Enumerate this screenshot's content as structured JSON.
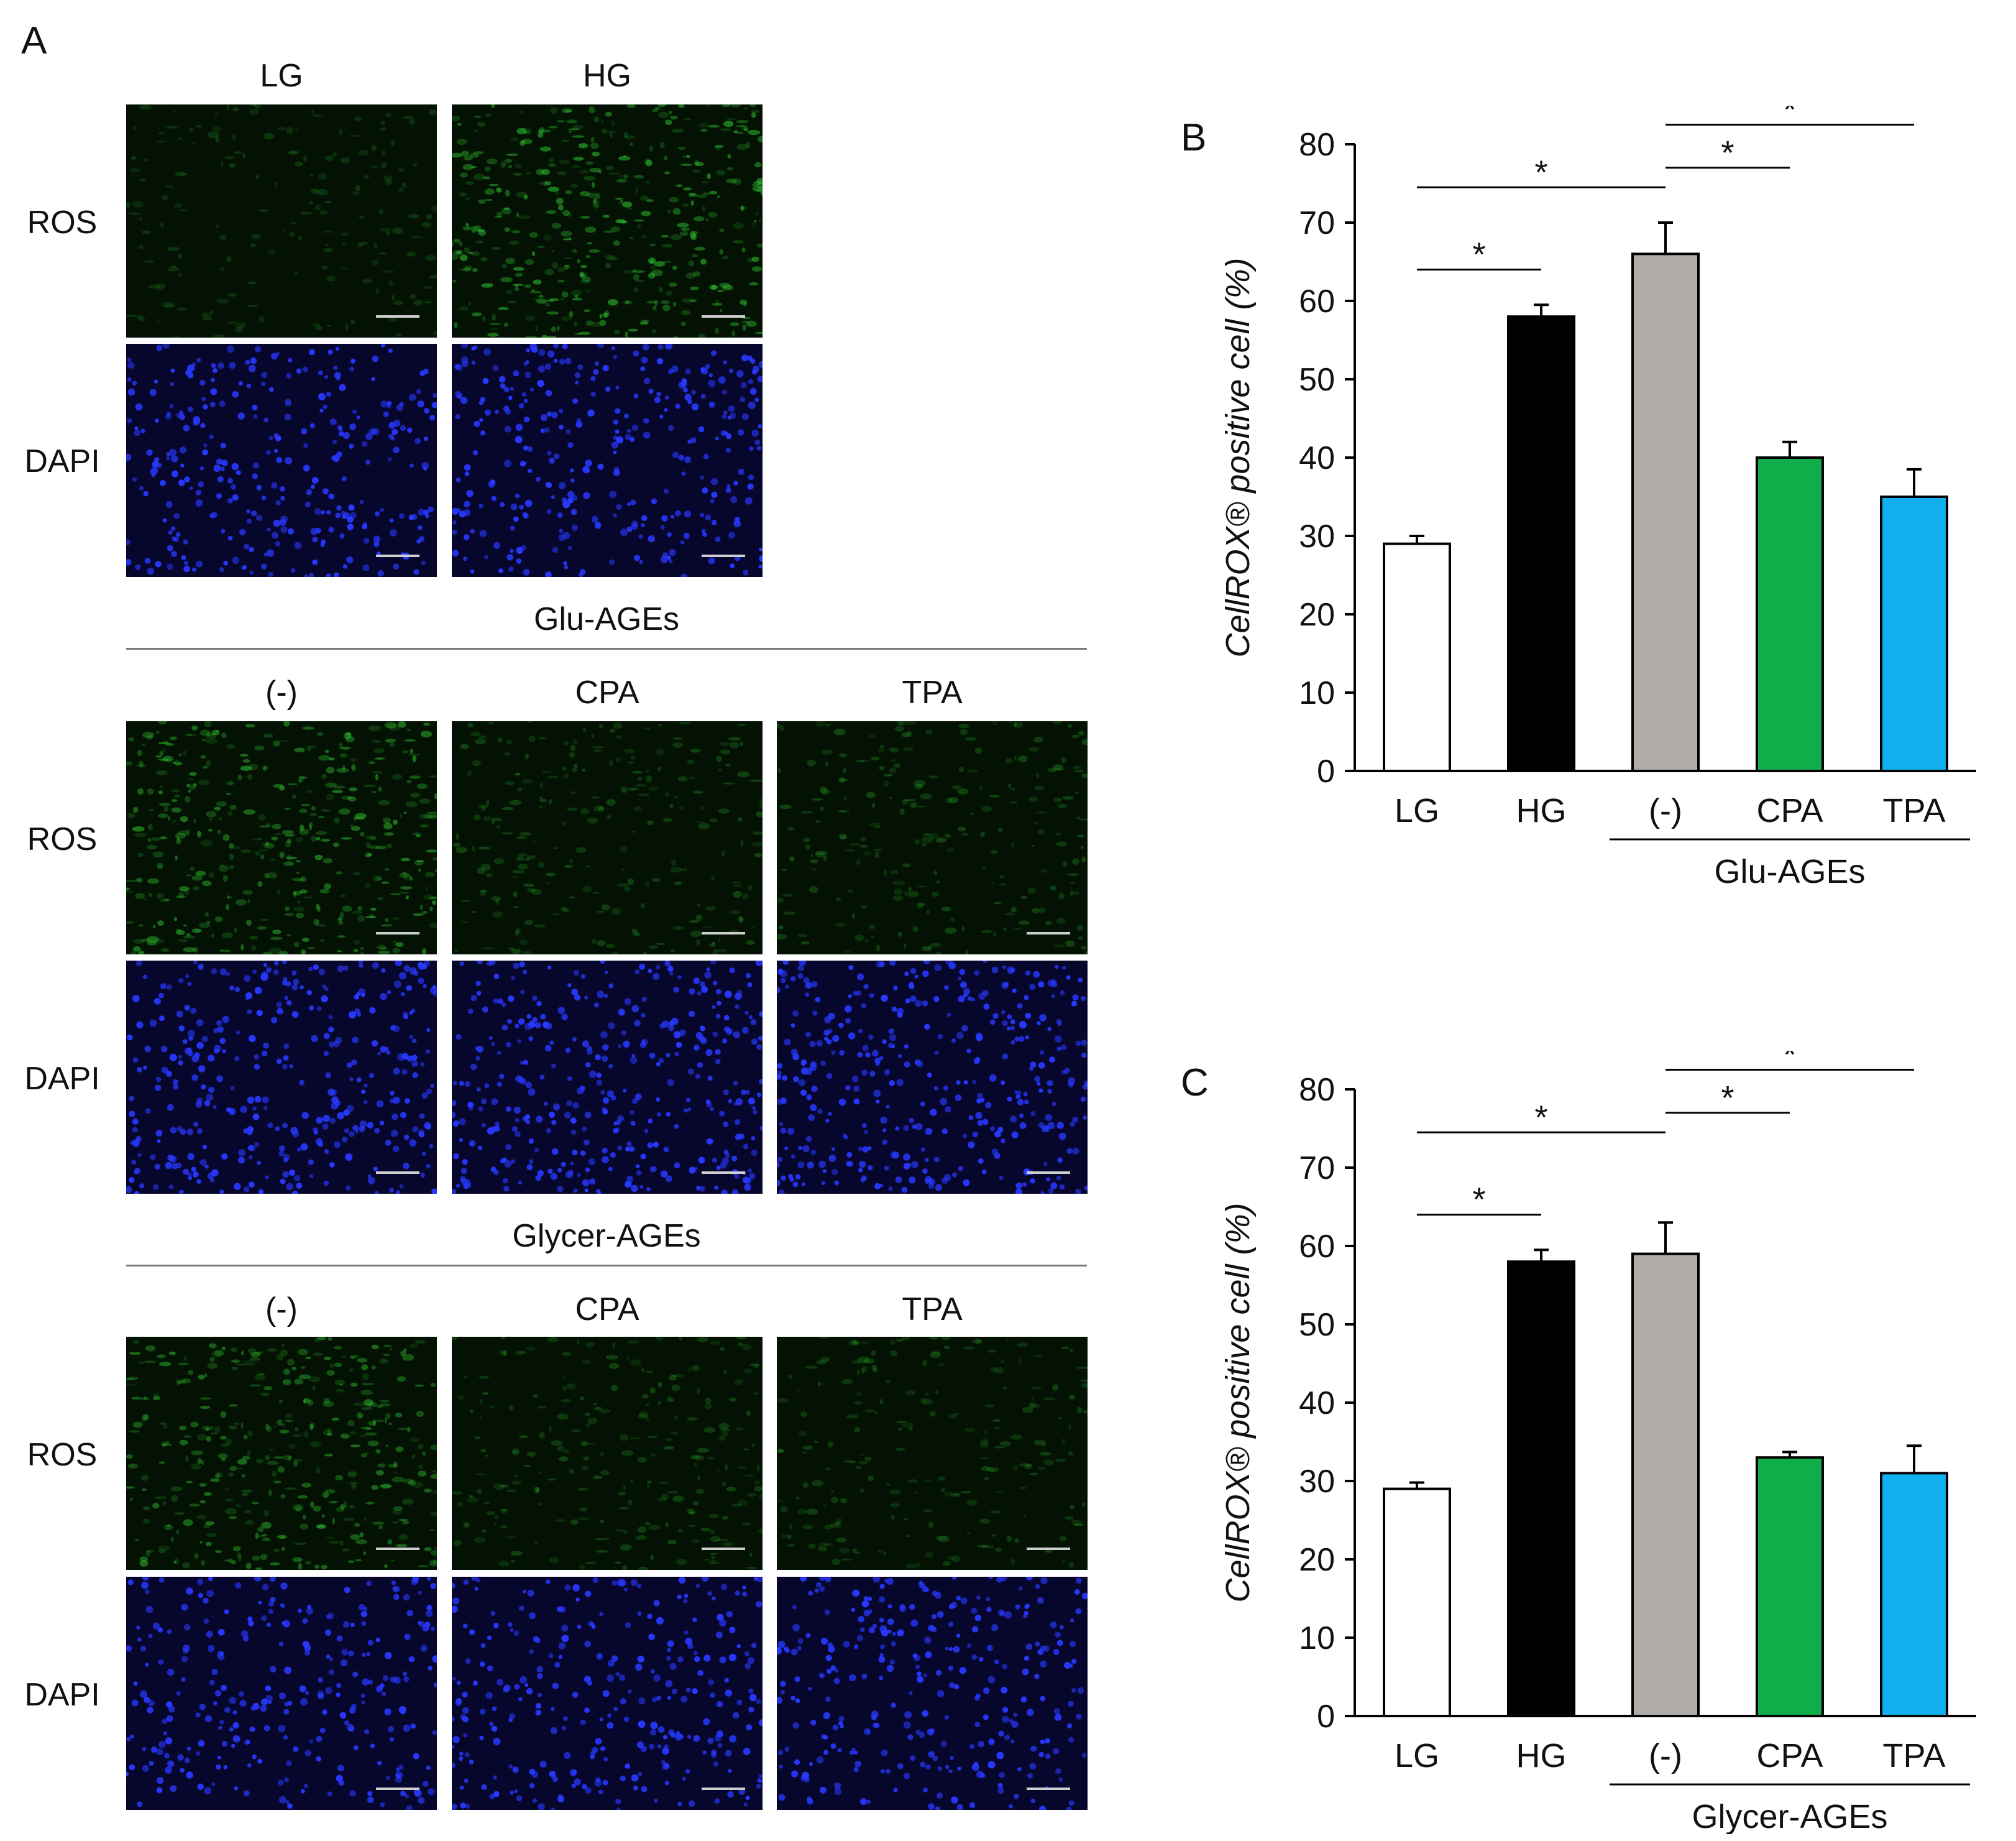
{
  "panel_a": {
    "letter": "A",
    "group1": {
      "columns": [
        "LG",
        "HG"
      ],
      "rows": [
        "ROS",
        "DAPI"
      ]
    },
    "group2": {
      "title": "Glu-AGEs",
      "columns": [
        "(-)",
        "CPA",
        "TPA"
      ],
      "rows": [
        "ROS",
        "DAPI"
      ]
    },
    "group3": {
      "title": "Glycer-AGEs",
      "columns": [
        "(-)",
        "CPA",
        "TPA"
      ],
      "rows": [
        "ROS",
        "DAPI"
      ]
    },
    "ros_intensity": {
      "LG": 0.15,
      "HG": 0.85,
      "glu_neg": 0.8,
      "glu_cpa": 0.3,
      "glu_tpa": 0.3,
      "gly_neg": 0.7,
      "gly_cpa": 0.3,
      "gly_tpa": 0.25
    },
    "colors": {
      "ros": "#2fbf2f",
      "dapi": "#2838ff",
      "scale_bar": "#cfcfcf"
    }
  },
  "chart_data": [
    {
      "panel": "B",
      "type": "bar",
      "categories": [
        "LG",
        "HG",
        "(-)",
        "CPA",
        "TPA"
      ],
      "values": [
        29,
        58,
        66,
        40,
        35
      ],
      "errors": [
        1,
        1.5,
        4,
        2,
        3.5
      ],
      "colors": [
        "#ffffff",
        "#000000",
        "#afaba6",
        "#10ae4a",
        "#10b0ee"
      ],
      "ylabel": "CellROX® positive cell (%)",
      "yticks": [
        "0",
        "10",
        "20",
        "30",
        "40",
        "50",
        "60",
        "70",
        "80"
      ],
      "ylim": [
        0,
        80
      ],
      "group_label": "Glu-AGEs",
      "significance": [
        {
          "from": 0,
          "to": 1,
          "label": "*"
        },
        {
          "from": 0,
          "to": 2,
          "label": "*"
        },
        {
          "from": 2,
          "to": 3,
          "label": "*"
        },
        {
          "from": 2,
          "to": 4,
          "label": "*"
        }
      ]
    },
    {
      "panel": "C",
      "type": "bar",
      "categories": [
        "LG",
        "HG",
        "(-)",
        "CPA",
        "TPA"
      ],
      "values": [
        29,
        58,
        59,
        33,
        31
      ],
      "errors": [
        0.8,
        1.5,
        4,
        0.7,
        3.5
      ],
      "colors": [
        "#ffffff",
        "#000000",
        "#afaba6",
        "#10ae4a",
        "#10b0ee"
      ],
      "ylabel": "CellROX® positive cell (%)",
      "yticks": [
        "0",
        "10",
        "20",
        "30",
        "40",
        "50",
        "60",
        "70",
        "80"
      ],
      "ylim": [
        0,
        80
      ],
      "group_label": "Glycer-AGEs",
      "significance": [
        {
          "from": 0,
          "to": 1,
          "label": "*"
        },
        {
          "from": 0,
          "to": 2,
          "label": "*"
        },
        {
          "from": 2,
          "to": 3,
          "label": "*"
        },
        {
          "from": 2,
          "to": 4,
          "label": "*"
        }
      ]
    }
  ]
}
